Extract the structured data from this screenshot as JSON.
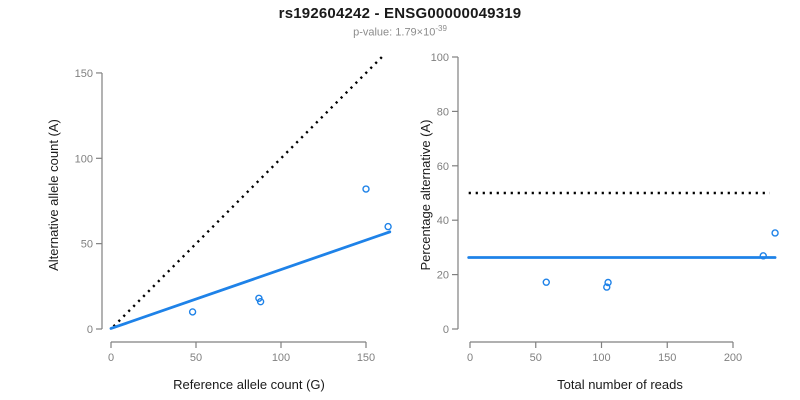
{
  "header": {
    "title": "rs192604242 - ENSG00000049319",
    "p_value_prefix": "p-value: 1.79×10",
    "p_value_exponent": "-39"
  },
  "palette": {
    "accent_blue": "#1E82E8",
    "axis_gray": "#808080",
    "tick_label_gray": "#808080",
    "title_black": "#1A1A1A",
    "subtitle_gray": "#8C8C8C",
    "dotted_black": "#000000",
    "background": "#FFFFFF"
  },
  "chart_data": [
    {
      "type": "scatter",
      "name": "allele-counts",
      "xlabel": "Reference allele count (G)",
      "ylabel": "Alternative allele count (A)",
      "xticks": [
        0,
        50,
        100,
        150
      ],
      "yticks": [
        0,
        50,
        100,
        150
      ],
      "xlim": [
        0,
        165
      ],
      "ylim": [
        0,
        165
      ],
      "grid": false,
      "marker": "open-circle",
      "points": [
        {
          "x": 48,
          "y": 10
        },
        {
          "x": 87,
          "y": 18
        },
        {
          "x": 88,
          "y": 16
        },
        {
          "x": 150,
          "y": 82
        },
        {
          "x": 163,
          "y": 60
        }
      ],
      "lines": [
        {
          "name": "identity-line",
          "style": "dotted",
          "color": "#000000",
          "x1": 1.5,
          "y1": 1.5,
          "x2": 160.5,
          "y2": 160.5
        },
        {
          "name": "fit-line",
          "style": "solid",
          "color": "#1E82E8",
          "x1": 0,
          "y1": 0.3,
          "x2": 164,
          "y2": 56.9
        }
      ]
    },
    {
      "type": "scatter",
      "name": "percentage-vs-coverage",
      "xlabel": "Total number of reads",
      "ylabel": "Percentage alternative (A)",
      "xticks": [
        0,
        50,
        100,
        150,
        200
      ],
      "yticks": [
        0,
        20,
        40,
        60,
        80,
        100
      ],
      "xlim": [
        0,
        232
      ],
      "ylim": [
        0,
        100
      ],
      "grid": false,
      "marker": "open-circle",
      "points": [
        {
          "x": 58,
          "y": 17.2
        },
        {
          "x": 105,
          "y": 17.1
        },
        {
          "x": 104,
          "y": 15.4
        },
        {
          "x": 232,
          "y": 35.3
        },
        {
          "x": 223,
          "y": 26.9
        }
      ],
      "lines": [
        {
          "name": "fifty-percent-line",
          "style": "dotted",
          "color": "#000000",
          "x1": -1,
          "y1": 50,
          "x2": 228,
          "y2": 50
        },
        {
          "name": "mean-percentage-line",
          "style": "solid",
          "color": "#1E82E8",
          "x1": -1,
          "y1": 26.3,
          "x2": 232,
          "y2": 26.3
        }
      ]
    }
  ]
}
